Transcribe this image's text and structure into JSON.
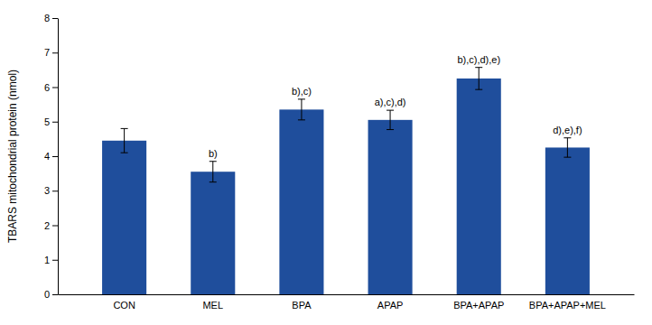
{
  "chart_data": {
    "type": "bar",
    "ylabel": "TBARS mitochondrial protein (nmol)",
    "categories": [
      "CON",
      "MEL",
      "BPA",
      "APAP",
      "BPA+APAP",
      "BPA+APAP+MEL"
    ],
    "values": [
      4.45,
      3.55,
      5.35,
      5.05,
      6.25,
      4.25
    ],
    "errors": [
      0.35,
      0.3,
      0.3,
      0.28,
      0.32,
      0.28
    ],
    "annotations": [
      null,
      "b)",
      "b),c)",
      "a),c),d)",
      "b),c),d),e)",
      "d),e),f)"
    ],
    "color": "#1f4e9c",
    "ylim": [
      0,
      8
    ],
    "yticks": [
      0,
      1,
      2,
      3,
      4,
      5,
      6,
      7,
      8
    ],
    "grid": false
  }
}
